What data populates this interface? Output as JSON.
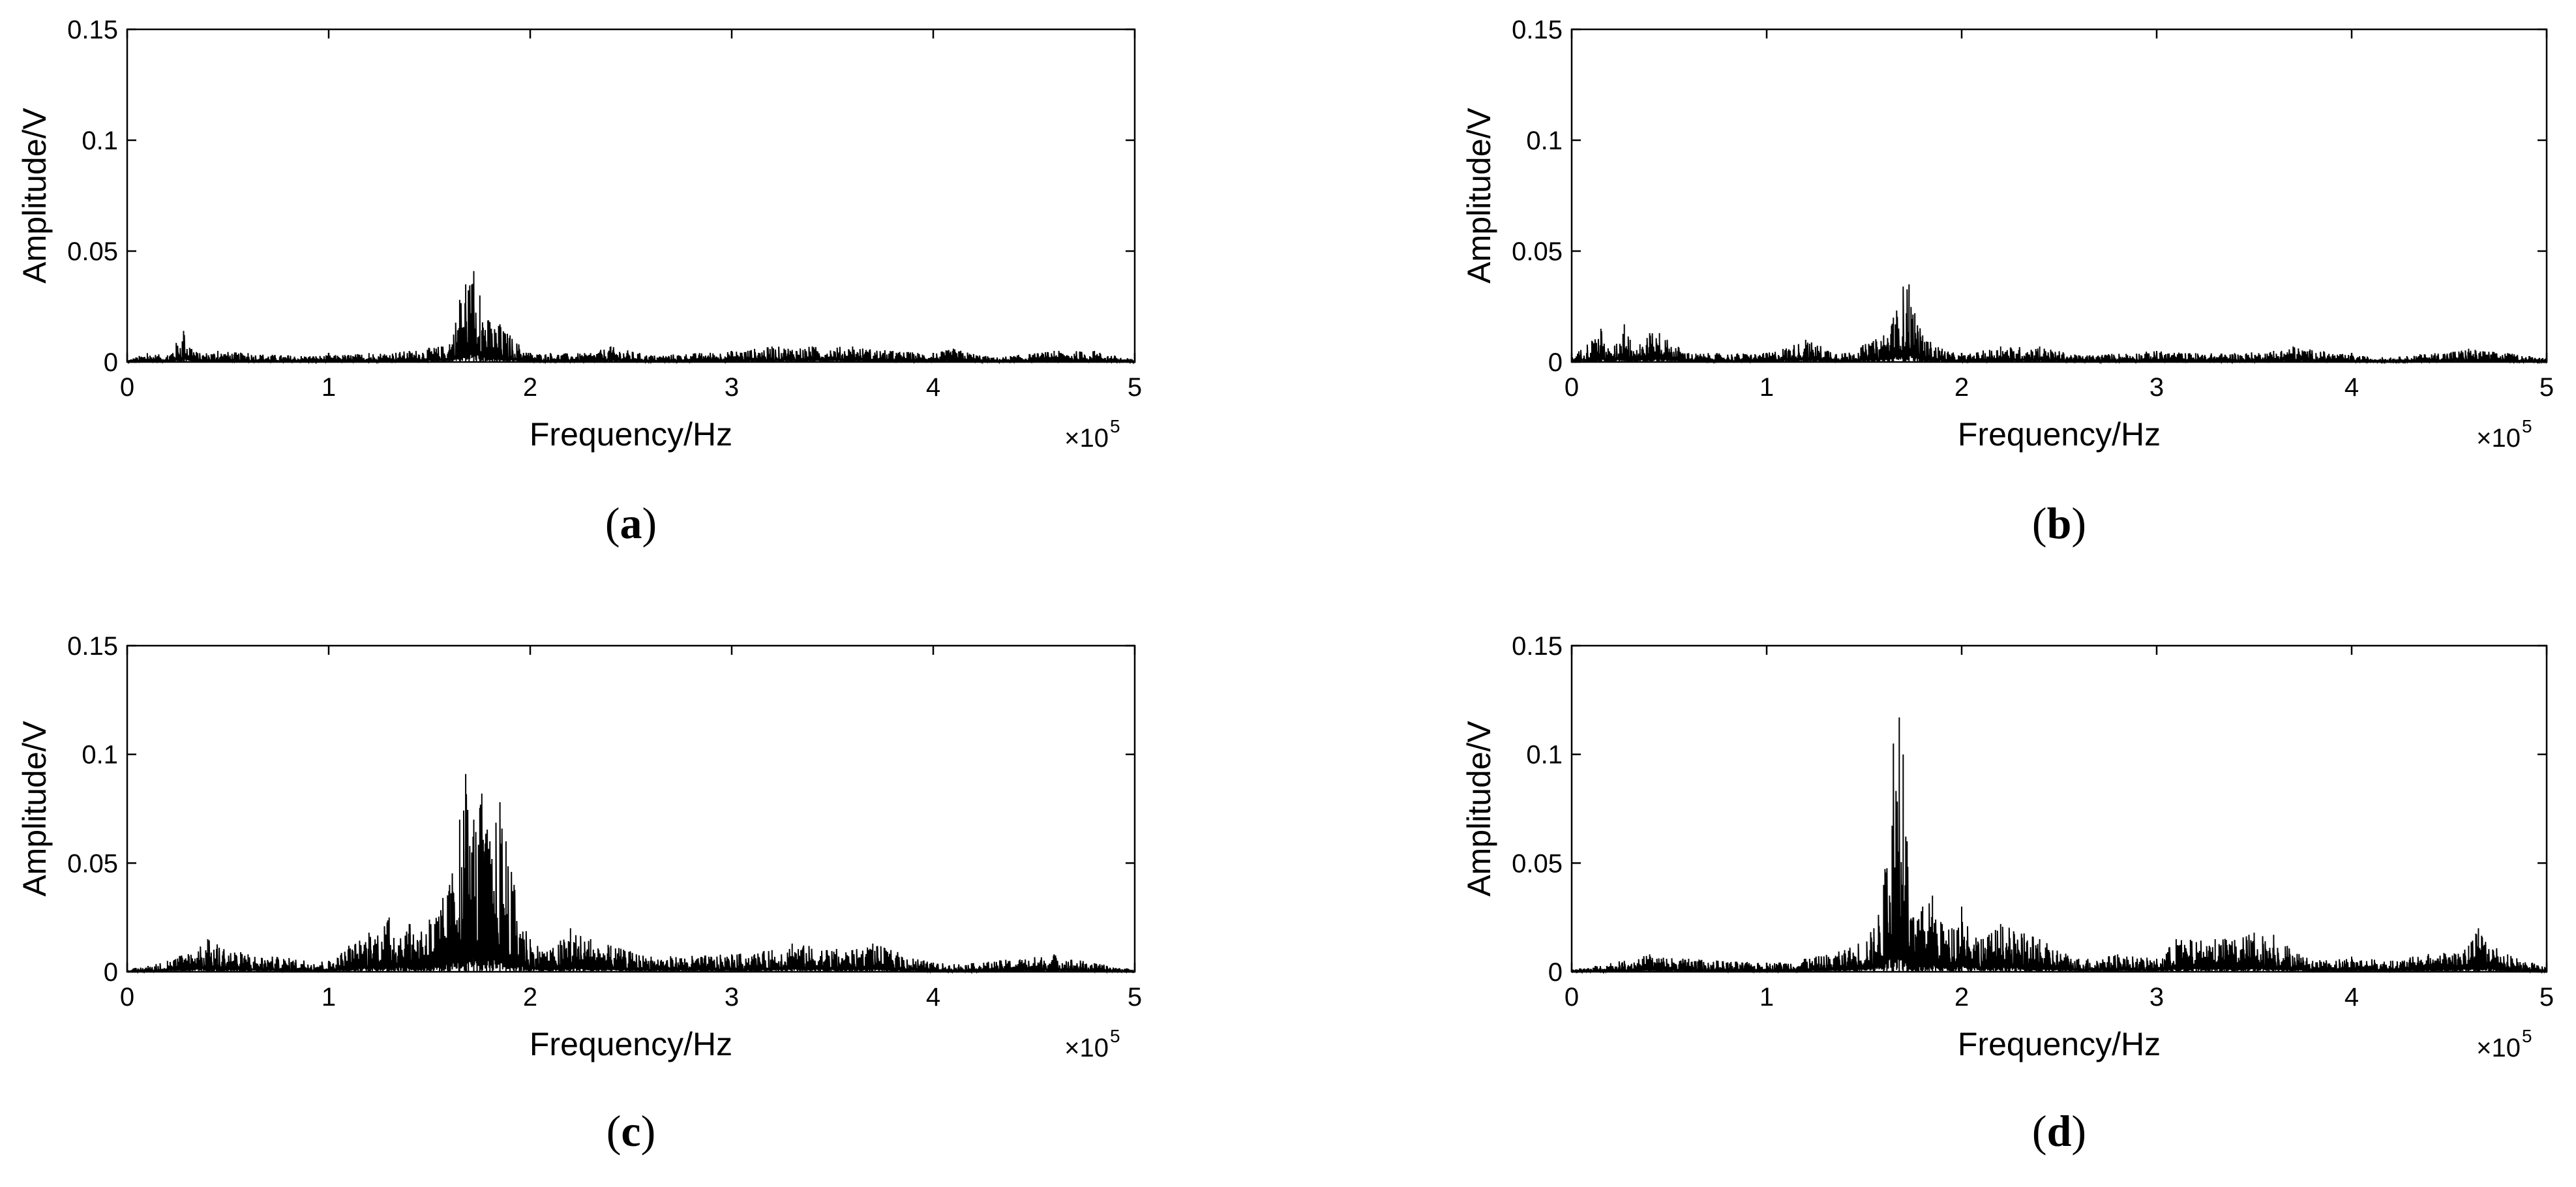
{
  "figure": {
    "x_axis_label": "Frequency/Hz",
    "y_axis_label": "Amplitude/V",
    "x_multiplier": "×10",
    "x_multiplier_exponent": "5",
    "line_color": "#000000",
    "background_color": "#ffffff"
  },
  "chart_data": [
    {
      "type": "line",
      "panel": "a",
      "caption_letter": "a",
      "xlabel": "Frequency/Hz",
      "ylabel": "Amplitude/V",
      "xlim": [
        0,
        500000
      ],
      "ylim": [
        0,
        0.15
      ],
      "x_ticks": [
        0,
        1,
        2,
        3,
        4,
        5
      ],
      "y_ticks": [
        "0",
        "0.05",
        "0.1",
        "0.15"
      ],
      "x_tick_multiplier": "×10^5",
      "grid": false,
      "series": [
        {
          "x": [
            0,
            10000,
            20000,
            28000,
            35000,
            45000,
            60000,
            80000,
            100000,
            120000,
            140000,
            160000,
            165000,
            168000,
            172000,
            175000,
            180000,
            185000,
            190000,
            200000,
            210000,
            230000,
            240000,
            260000,
            300000,
            320000,
            340000,
            360000,
            380000,
            400000,
            410000,
            430000,
            460000,
            480000,
            500000
          ],
          "y": [
            0.001,
            0.004,
            0.003,
            0.014,
            0.004,
            0.005,
            0.004,
            0.003,
            0.003,
            0.004,
            0.005,
            0.008,
            0.028,
            0.035,
            0.041,
            0.03,
            0.018,
            0.017,
            0.012,
            0.004,
            0.004,
            0.004,
            0.007,
            0.003,
            0.005,
            0.007,
            0.007,
            0.007,
            0.005,
            0.004,
            0.006,
            0.002,
            0.005,
            0.005,
            0.001
          ]
        }
      ]
    },
    {
      "type": "line",
      "panel": "b",
      "caption_letter": "b",
      "xlabel": "Frequency/Hz",
      "ylabel": "Amplitude/V",
      "xlim": [
        0,
        500000
      ],
      "ylim": [
        0,
        0.15
      ],
      "x_ticks": [
        0,
        1,
        2,
        3,
        4,
        5
      ],
      "y_ticks": [
        "0",
        "0.05",
        "0.1",
        "0.15"
      ],
      "x_tick_multiplier": "×10^5",
      "grid": false,
      "series": [
        {
          "x": [
            0,
            15000,
            20000,
            27000,
            30000,
            35000,
            40000,
            45000,
            60000,
            100000,
            120000,
            140000,
            160000,
            165000,
            170000,
            173000,
            176000,
            180000,
            190000,
            200000,
            220000,
            240000,
            260000,
            300000,
            320000,
            340000,
            360000,
            370000,
            400000,
            420000,
            460000,
            480000,
            500000
          ],
          "y": [
            0.002,
            0.015,
            0.004,
            0.017,
            0.01,
            0.008,
            0.013,
            0.013,
            0.004,
            0.004,
            0.01,
            0.004,
            0.012,
            0.02,
            0.034,
            0.035,
            0.022,
            0.012,
            0.006,
            0.003,
            0.007,
            0.007,
            0.003,
            0.005,
            0.004,
            0.004,
            0.005,
            0.007,
            0.003,
            0.002,
            0.006,
            0.004,
            0.002
          ]
        }
      ]
    },
    {
      "type": "line",
      "panel": "c",
      "caption_letter": "c",
      "xlabel": "Frequency/Hz",
      "ylabel": "Amplitude/V",
      "xlim": [
        0,
        500000
      ],
      "ylim": [
        0,
        0.15
      ],
      "x_ticks": [
        0,
        1,
        2,
        3,
        4,
        5
      ],
      "y_ticks": [
        "0",
        "0.05",
        "0.1",
        "0.15"
      ],
      "x_tick_multiplier": "×10^5",
      "grid": false,
      "series": [
        {
          "x": [
            0,
            20000,
            40000,
            60000,
            100000,
            110000,
            120000,
            130000,
            140000,
            150000,
            160000,
            165000,
            168000,
            172000,
            176000,
            180000,
            185000,
            188000,
            192000,
            200000,
            210000,
            220000,
            230000,
            240000,
            260000,
            300000,
            320000,
            330000,
            360000,
            370000,
            400000,
            420000,
            460000,
            480000,
            500000
          ],
          "y": [
            0.001,
            0.005,
            0.015,
            0.008,
            0.005,
            0.012,
            0.018,
            0.025,
            0.022,
            0.024,
            0.04,
            0.07,
            0.091,
            0.07,
            0.082,
            0.06,
            0.078,
            0.06,
            0.04,
            0.015,
            0.01,
            0.02,
            0.015,
            0.012,
            0.007,
            0.008,
            0.01,
            0.013,
            0.01,
            0.013,
            0.004,
            0.004,
            0.008,
            0.004,
            0.001
          ]
        }
      ]
    },
    {
      "type": "line",
      "panel": "d",
      "caption_letter": "d",
      "xlabel": "Frequency/Hz",
      "ylabel": "Amplitude/V",
      "xlim": [
        0,
        500000
      ],
      "ylim": [
        0,
        0.15
      ],
      "x_ticks": [
        0,
        1,
        2,
        3,
        4,
        5
      ],
      "y_ticks": [
        "0",
        "0.05",
        "0.1",
        "0.15"
      ],
      "x_tick_multiplier": "×10^5",
      "grid": false,
      "series": [
        {
          "x": [
            0,
            20000,
            40000,
            60000,
            100000,
            120000,
            140000,
            155000,
            160000,
            165000,
            168000,
            170000,
            172000,
            175000,
            180000,
            185000,
            190000,
            195000,
            200000,
            210000,
            220000,
            240000,
            260000,
            280000,
            300000,
            310000,
            330000,
            350000,
            360000,
            380000,
            400000,
            420000,
            460000,
            465000,
            480000,
            500000
          ],
          "y": [
            0.001,
            0.004,
            0.008,
            0.006,
            0.004,
            0.006,
            0.01,
            0.02,
            0.04,
            0.105,
            0.117,
            0.1,
            0.06,
            0.025,
            0.03,
            0.035,
            0.022,
            0.02,
            0.03,
            0.015,
            0.022,
            0.015,
            0.006,
            0.008,
            0.006,
            0.015,
            0.015,
            0.018,
            0.017,
            0.005,
            0.007,
            0.005,
            0.012,
            0.02,
            0.008,
            0.002
          ]
        }
      ]
    }
  ]
}
